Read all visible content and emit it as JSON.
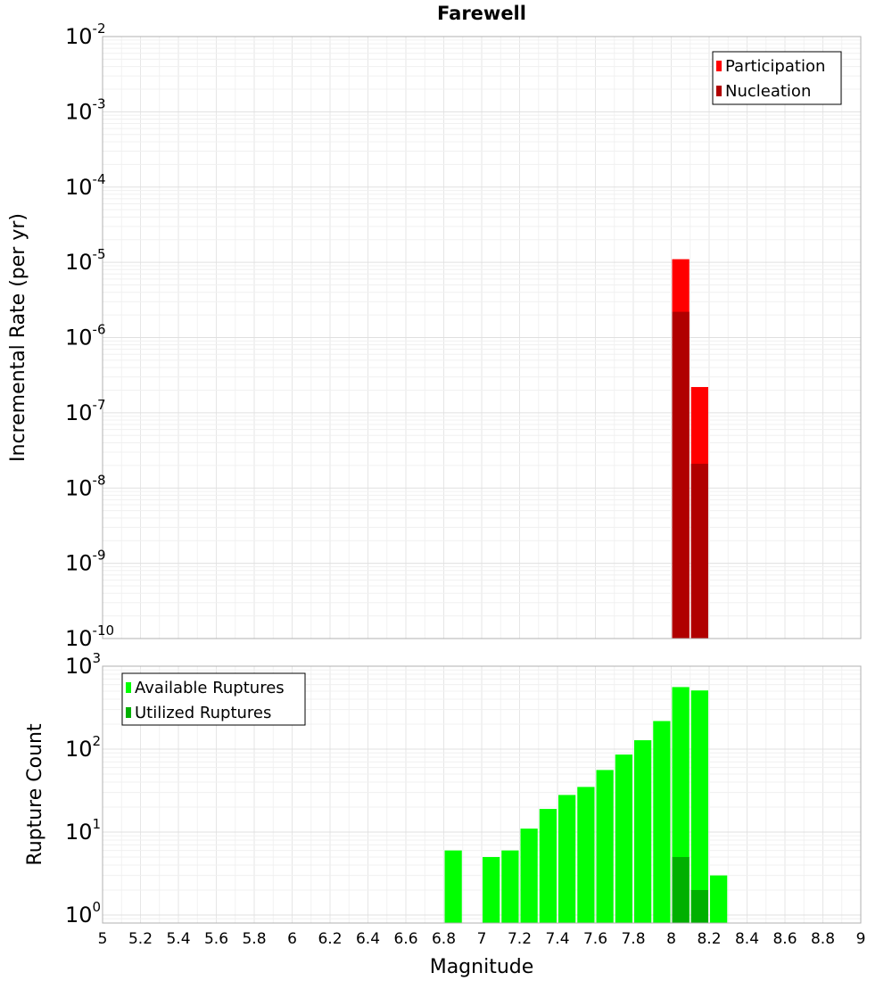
{
  "chart_data": [
    {
      "id": "rate",
      "type": "bar",
      "title": "Farewell",
      "xlabel": "",
      "ylabel": "Incremental Rate (per yr)",
      "yscale": "log",
      "xlim": [
        5,
        9
      ],
      "ylim": [
        1e-10,
        0.01
      ],
      "bin_width": 0.1,
      "grid": true,
      "legend_position": "top-right",
      "y_ticks": [
        {
          "base": "10",
          "exp": "-10"
        },
        {
          "base": "10",
          "exp": "-9"
        },
        {
          "base": "10",
          "exp": "-8"
        },
        {
          "base": "10",
          "exp": "-7"
        },
        {
          "base": "10",
          "exp": "-6"
        },
        {
          "base": "10",
          "exp": "-5"
        },
        {
          "base": "10",
          "exp": "-4"
        },
        {
          "base": "10",
          "exp": "-3"
        },
        {
          "base": "10",
          "exp": "-2"
        }
      ],
      "series": [
        {
          "name": "Participation",
          "color": "#ff0000",
          "points": [
            {
              "x": 8.05,
              "y": 1.1e-05
            },
            {
              "x": 8.15,
              "y": 2.2e-07
            }
          ]
        },
        {
          "name": "Nucleation",
          "color": "#b00000",
          "points": [
            {
              "x": 8.05,
              "y": 2.2e-06
            },
            {
              "x": 8.15,
              "y": 2.1e-08
            }
          ]
        }
      ]
    },
    {
      "id": "count",
      "type": "bar",
      "title": "",
      "xlabel": "Magnitude",
      "ylabel": "Rupture Count",
      "yscale": "log",
      "xlim": [
        5,
        9
      ],
      "ylim": [
        0.8,
        1000
      ],
      "bin_width": 0.1,
      "grid": true,
      "legend_position": "top-left",
      "x_ticks": [
        "5",
        "5.2",
        "5.4",
        "5.6",
        "5.8",
        "6",
        "6.2",
        "6.4",
        "6.6",
        "6.8",
        "7",
        "7.2",
        "7.4",
        "7.6",
        "7.8",
        "8",
        "8.2",
        "8.4",
        "8.6",
        "8.8",
        "9"
      ],
      "y_ticks": [
        {
          "base": "10",
          "exp": "0"
        },
        {
          "base": "10",
          "exp": "1"
        },
        {
          "base": "10",
          "exp": "2"
        },
        {
          "base": "10",
          "exp": "3"
        }
      ],
      "series": [
        {
          "name": "Available Ruptures",
          "color": "#00ff00",
          "points": [
            {
              "x": 6.85,
              "y": 6
            },
            {
              "x": 7.05,
              "y": 5
            },
            {
              "x": 7.15,
              "y": 6
            },
            {
              "x": 7.25,
              "y": 11
            },
            {
              "x": 7.35,
              "y": 19
            },
            {
              "x": 7.45,
              "y": 28
            },
            {
              "x": 7.55,
              "y": 35
            },
            {
              "x": 7.65,
              "y": 56
            },
            {
              "x": 7.75,
              "y": 86
            },
            {
              "x": 7.85,
              "y": 128
            },
            {
              "x": 7.95,
              "y": 218
            },
            {
              "x": 8.05,
              "y": 560
            },
            {
              "x": 8.15,
              "y": 510
            },
            {
              "x": 8.25,
              "y": 3
            }
          ]
        },
        {
          "name": "Utilized Ruptures",
          "color": "#00b000",
          "points": [
            {
              "x": 8.05,
              "y": 5
            },
            {
              "x": 8.15,
              "y": 2
            }
          ]
        }
      ]
    }
  ]
}
